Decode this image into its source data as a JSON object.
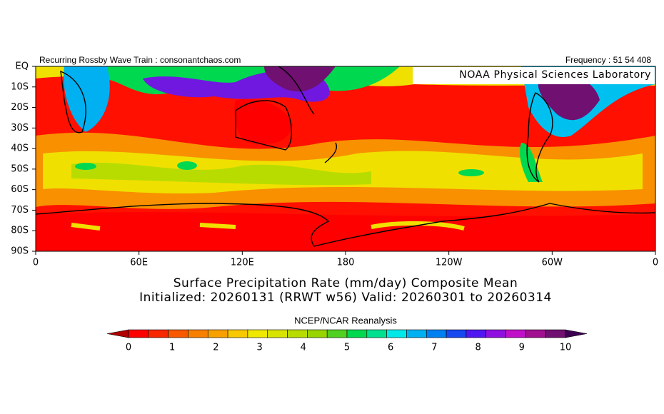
{
  "header": {
    "left": "Recurring Rossby Wave Train : consonantchaos.com",
    "right": "Frequency : 51 54 408",
    "badge": "NOAA Physical Sciences Laboratory"
  },
  "map": {
    "lat_labels": [
      "EQ",
      "10S",
      "20S",
      "30S",
      "40S",
      "50S",
      "60S",
      "70S",
      "80S",
      "90S"
    ],
    "lon_labels": [
      "0",
      "60E",
      "120E",
      "180",
      "120W",
      "60W",
      "0"
    ]
  },
  "title": {
    "line1": "Surface Precipitation Rate (mm/day) Composite Mean",
    "line2": "Initialized: 20260131 (RRWT w56) Valid: 20260301 to 20260314"
  },
  "source": "NCEP/NCAR Reanalysis",
  "colorbar": {
    "ticks": [
      0,
      1,
      2,
      3,
      4,
      5,
      6,
      7,
      8,
      9,
      10
    ],
    "under_color": "#b00000",
    "over_color": "#3c0050",
    "colors": [
      "#ff0000",
      "#f82800",
      "#f85800",
      "#f88000",
      "#f8a000",
      "#f8c800",
      "#f0e800",
      "#d8e400",
      "#b8dc00",
      "#98d400",
      "#50d020",
      "#00d850",
      "#00e090",
      "#00e8e8",
      "#00b0f0",
      "#0080f0",
      "#1848f0",
      "#5018f0",
      "#9010e0",
      "#c010c8",
      "#a01090",
      "#701070"
    ]
  }
}
